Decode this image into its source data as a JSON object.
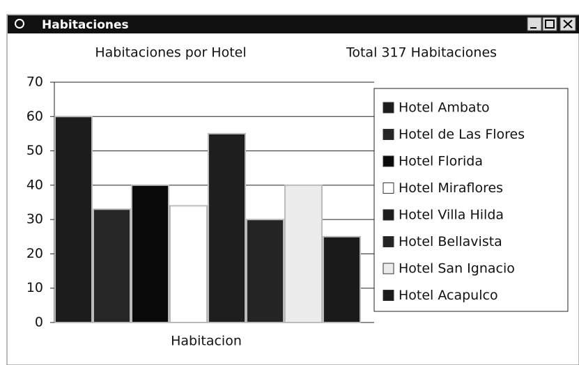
{
  "window": {
    "title": "Habitaciones"
  },
  "chart_data": {
    "type": "bar",
    "title": "Habitaciones por Hotel",
    "subtitle": "Total 317 Habitaciones",
    "x_label": "Habitacion",
    "categories": [
      "Habitacion"
    ],
    "series": [
      {
        "name": "Hotel Ambato",
        "color": "#1c1c1c",
        "values": [
          60
        ]
      },
      {
        "name": "Hotel de Las Flores",
        "color": "#262626",
        "values": [
          33
        ]
      },
      {
        "name": "Hotel Florida",
        "color": "#0a0a0a",
        "values": [
          40
        ]
      },
      {
        "name": "Hotel Miraflores",
        "color": "#ffffff",
        "values": [
          34
        ]
      },
      {
        "name": "Hotel Villa Hilda",
        "color": "#1e1e1e",
        "values": [
          55
        ]
      },
      {
        "name": "Hotel Bellavista",
        "color": "#242424",
        "values": [
          30
        ]
      },
      {
        "name": "Hotel San Ignacio",
        "color": "#ececec",
        "values": [
          40
        ]
      },
      {
        "name": "Hotel Acapulco",
        "color": "#1a1a1a",
        "values": [
          25
        ]
      }
    ],
    "ylim": [
      0,
      70
    ],
    "yticks": [
      0,
      10,
      20,
      30,
      40,
      50,
      60,
      70
    ],
    "grid": true,
    "legend": "right"
  }
}
